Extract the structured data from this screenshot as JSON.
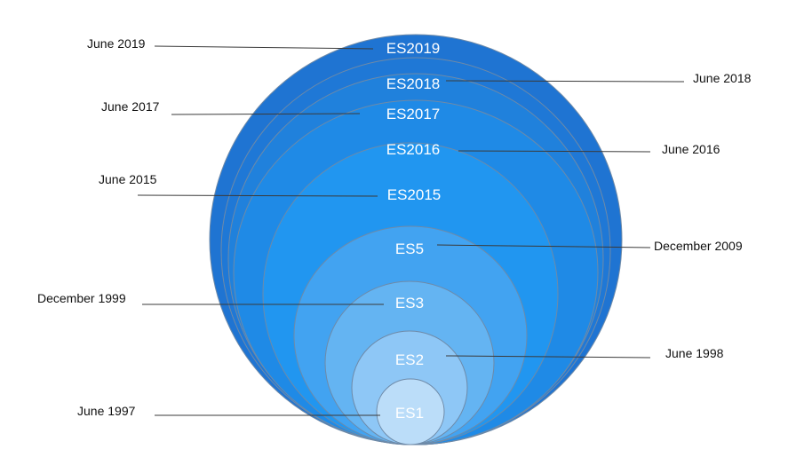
{
  "editions": [
    {
      "name": "ES2019",
      "date": "June 2019",
      "color": "#1F74D2"
    },
    {
      "name": "ES2018",
      "date": "June 2018",
      "color": "#1F78D6"
    },
    {
      "name": "ES2017",
      "date": "June 2017",
      "color": "#2081DC"
    },
    {
      "name": "ES2016",
      "date": "June 2016",
      "color": "#1F8AE6"
    },
    {
      "name": "ES2015",
      "date": "June 2015",
      "color": "#2196F0"
    },
    {
      "name": "ES5",
      "date": "December 2009",
      "color": "#42A3F1"
    },
    {
      "name": "ES3",
      "date": "December 1999",
      "color": "#64B4F2"
    },
    {
      "name": "ES2",
      "date": "June 1998",
      "color": "#8EC7F6"
    },
    {
      "name": "ES1",
      "date": "June 1997",
      "color": "#BBDDF9"
    }
  ]
}
